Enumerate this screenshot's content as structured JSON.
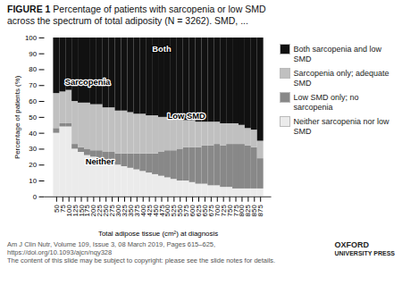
{
  "chart_data": {
    "type": "bar",
    "stacked": true,
    "title": "FIGURE 1",
    "subtitle": " Percentage of patients with sarcopenia or low SMD\nacross the spectrum of total adiposity (N = 3262). SMD, ...",
    "y_label": "Percentage of patients (%)",
    "x_label": "Total adipose tissue (cm²) at diagnosis",
    "ylim": [
      0,
      100
    ],
    "yticks": [
      0,
      10,
      20,
      30,
      40,
      50,
      60,
      70,
      80,
      90,
      100
    ],
    "grid": false,
    "legend": "right",
    "categories": [
      "50",
      "75",
      "100",
      "125",
      "150",
      "175",
      "200",
      "225",
      "250",
      "275",
      "300",
      "325",
      "350",
      "375",
      "400",
      "425",
      "450",
      "475",
      "500",
      "525",
      "550",
      "575",
      "600",
      "625",
      "650",
      "675",
      "700",
      "725",
      "750",
      "775",
      "800",
      "825",
      "850",
      "875"
    ],
    "series": [
      {
        "name": "Neither sarcopenia nor low SMD",
        "color": "#ebebeb",
        "values": [
          40,
          44,
          44,
          30,
          28,
          26,
          25,
          24,
          23,
          22,
          20,
          19,
          18,
          17,
          16,
          15,
          14,
          13,
          12,
          11,
          10,
          10,
          9,
          8,
          8,
          7,
          7,
          6,
          6,
          5,
          5,
          5,
          5,
          5
        ]
      },
      {
        "name": "Low SMD only; no sarcopenia",
        "color": "#888888",
        "values": [
          3,
          2,
          2,
          3,
          3,
          4,
          4,
          5,
          5,
          6,
          7,
          8,
          9,
          10,
          11,
          12,
          13,
          15,
          17,
          18,
          20,
          21,
          22,
          23,
          24,
          25,
          26,
          26,
          27,
          28,
          28,
          27,
          26,
          19
        ]
      },
      {
        "name": "Sarcopenia only; adequate SMD",
        "color": "#c0c0c0",
        "values": [
          22,
          20,
          21,
          27,
          28,
          29,
          29,
          29,
          28,
          28,
          27,
          27,
          26,
          25,
          25,
          24,
          24,
          22,
          21,
          20,
          19,
          17,
          17,
          16,
          15,
          15,
          14,
          14,
          13,
          13,
          12,
          11,
          11,
          11
        ]
      },
      {
        "name": "Both sarcopenia and low SMD",
        "color": "#111111",
        "values": [
          35,
          34,
          33,
          40,
          41,
          41,
          42,
          42,
          44,
          44,
          46,
          46,
          47,
          48,
          48,
          49,
          49,
          50,
          50,
          51,
          51,
          52,
          52,
          53,
          53,
          53,
          53,
          54,
          54,
          54,
          55,
          57,
          58,
          65
        ]
      }
    ],
    "annotations": [
      {
        "text": "Both",
        "x": "475",
        "y": 93,
        "color": "white"
      },
      {
        "text": "Sarcopenia",
        "x": "175",
        "y": 72,
        "color": "black"
      },
      {
        "text": "Low SMD",
        "x": "575",
        "y": 51,
        "color": "black"
      },
      {
        "text": "Neither",
        "x": "225",
        "y": 22,
        "color": "black"
      }
    ],
    "caption": [
      "Am J Clin Nutr, Volume 109, Issue 3, 08 March 2019, Pages 615–625, https://doi.org/10.1093/ajcn/nqy328",
      "The content of this slide may be subject to copyright: please see the slide notes for details."
    ],
    "source": [
      "OXFORD",
      "UNIVERSITY PRESS"
    ]
  }
}
